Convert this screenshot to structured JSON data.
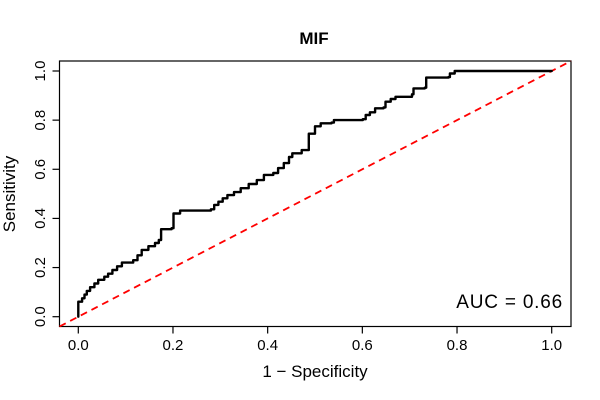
{
  "chart_data": {
    "type": "line",
    "subtype": "roc-curve-step",
    "title": "MIF",
    "xlabel": "1 − Specificity",
    "ylabel": "Sensitivity",
    "xlim": [
      0.0,
      1.0
    ],
    "ylim": [
      0.0,
      1.0
    ],
    "grid": false,
    "legend": "none",
    "x_ticks": [
      "0.0",
      "0.2",
      "0.4",
      "0.6",
      "0.8",
      "1.0"
    ],
    "y_ticks": [
      "0.0",
      "0.2",
      "0.4",
      "0.6",
      "0.8",
      "1.0"
    ],
    "frame_color": "#000000",
    "series": [
      {
        "name": "ROC curve",
        "color": "#000000",
        "style": "step",
        "line_width": 2.4,
        "points": [
          [
            0.0,
            0.0
          ],
          [
            0.0,
            0.061
          ],
          [
            0.008,
            0.075
          ],
          [
            0.013,
            0.09
          ],
          [
            0.018,
            0.105
          ],
          [
            0.025,
            0.12
          ],
          [
            0.034,
            0.135
          ],
          [
            0.042,
            0.15
          ],
          [
            0.055,
            0.163
          ],
          [
            0.063,
            0.175
          ],
          [
            0.072,
            0.19
          ],
          [
            0.082,
            0.205
          ],
          [
            0.092,
            0.22
          ],
          [
            0.116,
            0.23
          ],
          [
            0.125,
            0.25
          ],
          [
            0.134,
            0.272
          ],
          [
            0.148,
            0.287
          ],
          [
            0.162,
            0.3
          ],
          [
            0.17,
            0.312
          ],
          [
            0.175,
            0.356
          ],
          [
            0.197,
            0.36
          ],
          [
            0.201,
            0.42
          ],
          [
            0.215,
            0.432
          ],
          [
            0.28,
            0.437
          ],
          [
            0.287,
            0.455
          ],
          [
            0.296,
            0.468
          ],
          [
            0.305,
            0.482
          ],
          [
            0.315,
            0.495
          ],
          [
            0.329,
            0.507
          ],
          [
            0.343,
            0.523
          ],
          [
            0.36,
            0.54
          ],
          [
            0.377,
            0.556
          ],
          [
            0.392,
            0.577
          ],
          [
            0.412,
            0.585
          ],
          [
            0.422,
            0.605
          ],
          [
            0.434,
            0.625
          ],
          [
            0.445,
            0.65
          ],
          [
            0.452,
            0.665
          ],
          [
            0.472,
            0.678
          ],
          [
            0.487,
            0.745
          ],
          [
            0.5,
            0.775
          ],
          [
            0.512,
            0.787
          ],
          [
            0.535,
            0.79
          ],
          [
            0.54,
            0.8
          ],
          [
            0.601,
            0.804
          ],
          [
            0.607,
            0.821
          ],
          [
            0.616,
            0.832
          ],
          [
            0.627,
            0.848
          ],
          [
            0.645,
            0.852
          ],
          [
            0.649,
            0.875
          ],
          [
            0.66,
            0.886
          ],
          [
            0.67,
            0.895
          ],
          [
            0.705,
            0.905
          ],
          [
            0.708,
            0.929
          ],
          [
            0.732,
            0.932
          ],
          [
            0.735,
            0.973
          ],
          [
            0.782,
            0.975
          ],
          [
            0.785,
            0.99
          ],
          [
            0.795,
            1.0
          ],
          [
            1.0,
            1.0
          ]
        ]
      },
      {
        "name": "chance diagonal",
        "color": "#FF0000",
        "style": "dashed",
        "line_width": 1.8,
        "points": [
          [
            0.0,
            0.0
          ],
          [
            1.0,
            1.0
          ]
        ]
      }
    ],
    "annotations": [
      {
        "text": "AUC = 0.66",
        "x": 0.98,
        "y": 0.07,
        "align": "right"
      }
    ]
  }
}
